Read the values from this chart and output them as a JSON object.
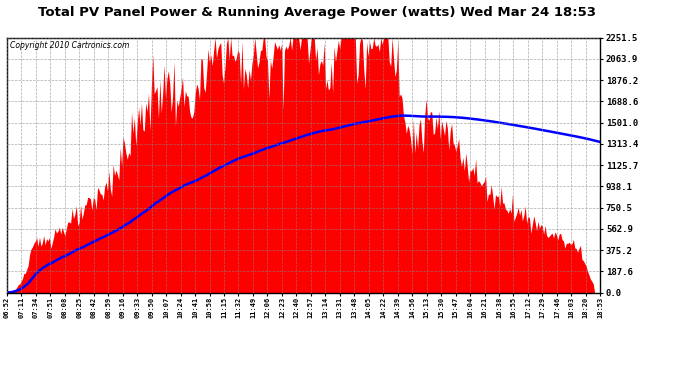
{
  "title": "Total PV Panel Power & Running Average Power (watts) Wed Mar 24 18:53",
  "copyright": "Copyright 2010 Cartronics.com",
  "background_color": "#ffffff",
  "plot_bg_color": "#ffffff",
  "grid_color": "#888888",
  "fill_color": "#ff0000",
  "line_color": "#0000ff",
  "title_fontsize": 9.5,
  "yticks": [
    0.0,
    187.6,
    375.2,
    562.9,
    750.5,
    938.1,
    1125.7,
    1313.4,
    1501.0,
    1688.6,
    1876.2,
    2063.9,
    2251.5
  ],
  "ymax": 2251.5,
  "xtick_labels": [
    "06:52",
    "07:11",
    "07:34",
    "07:51",
    "08:08",
    "08:25",
    "08:42",
    "08:59",
    "09:16",
    "09:33",
    "09:50",
    "10:07",
    "10:24",
    "10:41",
    "10:58",
    "11:15",
    "11:32",
    "11:49",
    "12:06",
    "12:23",
    "12:40",
    "12:57",
    "13:14",
    "13:31",
    "13:48",
    "14:05",
    "14:22",
    "14:39",
    "14:56",
    "15:13",
    "15:30",
    "15:47",
    "16:04",
    "16:21",
    "16:38",
    "16:55",
    "17:12",
    "17:29",
    "17:46",
    "18:03",
    "18:20",
    "18:53"
  ],
  "n_points": 420
}
